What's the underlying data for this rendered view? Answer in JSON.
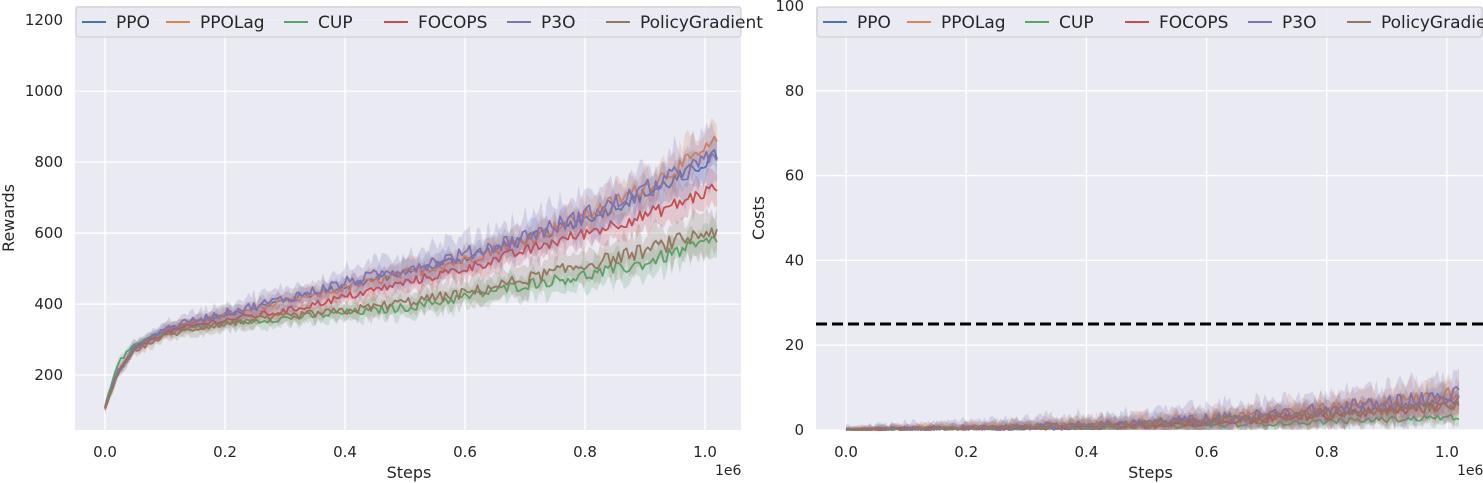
{
  "chart_data": [
    {
      "type": "line",
      "xlabel": "Steps",
      "ylabel": "Rewards",
      "x_scale_label": "1e6",
      "x_range": [
        -0.05,
        1.06
      ],
      "y_range": [
        45,
        1240
      ],
      "x_ticks": [
        0.0,
        0.2,
        0.4,
        0.6,
        0.8,
        1.0
      ],
      "x_tick_labels": [
        "0.0",
        "0.2",
        "0.4",
        "0.6",
        "0.8",
        "1.0"
      ],
      "y_ticks": [
        200,
        400,
        600,
        800,
        1000,
        1200
      ],
      "y_tick_labels": [
        "200",
        "400",
        "600",
        "800",
        "1000",
        "1200"
      ],
      "grid": true,
      "legend_position": "top",
      "shaded_bands": true,
      "x": [
        0.0,
        0.02,
        0.05,
        0.1,
        0.15,
        0.2,
        0.3,
        0.4,
        0.5,
        0.6,
        0.7,
        0.8,
        0.9,
        0.95,
        1.0,
        1.02
      ],
      "series": [
        {
          "name": "PPO",
          "color": "#4c72b0",
          "values": [
            105,
            200,
            275,
            330,
            350,
            370,
            410,
            450,
            490,
            530,
            580,
            640,
            710,
            750,
            800,
            820
          ],
          "band": 40
        },
        {
          "name": "PPOLag",
          "color": "#dd8452",
          "values": [
            105,
            200,
            275,
            330,
            350,
            370,
            405,
            445,
            485,
            525,
            580,
            650,
            730,
            780,
            830,
            860
          ],
          "band": 45
        },
        {
          "name": "CUP",
          "color": "#55a868",
          "values": [
            110,
            230,
            290,
            320,
            335,
            345,
            360,
            375,
            390,
            420,
            455,
            480,
            515,
            545,
            570,
            580
          ],
          "band": 40
        },
        {
          "name": "FOCOPS",
          "color": "#c44e52",
          "values": [
            105,
            205,
            275,
            320,
            340,
            355,
            380,
            420,
            460,
            500,
            550,
            600,
            650,
            680,
            715,
            730
          ],
          "band": 40
        },
        {
          "name": "P3O",
          "color": "#8172b3",
          "values": [
            105,
            205,
            280,
            330,
            355,
            375,
            415,
            460,
            500,
            540,
            590,
            650,
            720,
            760,
            800,
            820
          ],
          "band": 60
        },
        {
          "name": "PolicyGradient",
          "color": "#937860",
          "values": [
            105,
            200,
            270,
            310,
            330,
            345,
            365,
            380,
            405,
            430,
            470,
            510,
            550,
            575,
            600,
            610
          ],
          "band": 45
        }
      ]
    },
    {
      "type": "line",
      "xlabel": "Steps",
      "ylabel": "Costs",
      "x_scale_label": "1e6",
      "x_range": [
        -0.05,
        1.06
      ],
      "y_range": [
        0,
        100
      ],
      "x_ticks": [
        0.0,
        0.2,
        0.4,
        0.6,
        0.8,
        1.0
      ],
      "x_tick_labels": [
        "0.0",
        "0.2",
        "0.4",
        "0.6",
        "0.8",
        "1.0"
      ],
      "y_ticks": [
        0,
        20,
        40,
        60,
        80,
        100
      ],
      "y_tick_labels": [
        "0",
        "20",
        "40",
        "60",
        "80",
        "100"
      ],
      "grid": true,
      "legend_position": "top",
      "shaded_bands": true,
      "cost_limit": 25,
      "x": [
        0.0,
        0.1,
        0.2,
        0.3,
        0.4,
        0.5,
        0.6,
        0.7,
        0.8,
        0.9,
        1.0,
        1.02
      ],
      "series": [
        {
          "name": "PPO",
          "color": "#4c72b0",
          "values": [
            0,
            0.3,
            0.5,
            0.8,
            1.0,
            1.5,
            2.2,
            3.0,
            4.0,
            5.5,
            7.0,
            7.5
          ],
          "band": 2.5
        },
        {
          "name": "PPOLag",
          "color": "#dd8452",
          "values": [
            0,
            0.3,
            0.5,
            0.8,
            1.0,
            1.5,
            2.5,
            3.5,
            5.0,
            6.5,
            8.5,
            9.0
          ],
          "band": 3
        },
        {
          "name": "CUP",
          "color": "#55a868",
          "values": [
            0,
            0.2,
            0.3,
            0.4,
            0.5,
            0.8,
            1.0,
            1.5,
            2.0,
            2.5,
            3.0,
            3.2
          ],
          "band": 1.5
        },
        {
          "name": "FOCOPS",
          "color": "#c44e52",
          "values": [
            0,
            0.3,
            0.4,
            0.6,
            0.8,
            1.2,
            1.8,
            2.5,
            3.5,
            4.5,
            5.5,
            6.0
          ],
          "band": 2.5
        },
        {
          "name": "P3O",
          "color": "#8172b3",
          "values": [
            0,
            0.3,
            0.5,
            0.8,
            1.0,
            1.6,
            2.5,
            3.5,
            4.8,
            6.5,
            8.0,
            8.5
          ],
          "band": 4
        },
        {
          "name": "PolicyGradient",
          "color": "#937860",
          "values": [
            0,
            0.3,
            0.5,
            0.8,
            1.0,
            1.4,
            2.0,
            2.8,
            3.8,
            5.0,
            6.0,
            6.5
          ],
          "band": 3
        }
      ]
    }
  ]
}
